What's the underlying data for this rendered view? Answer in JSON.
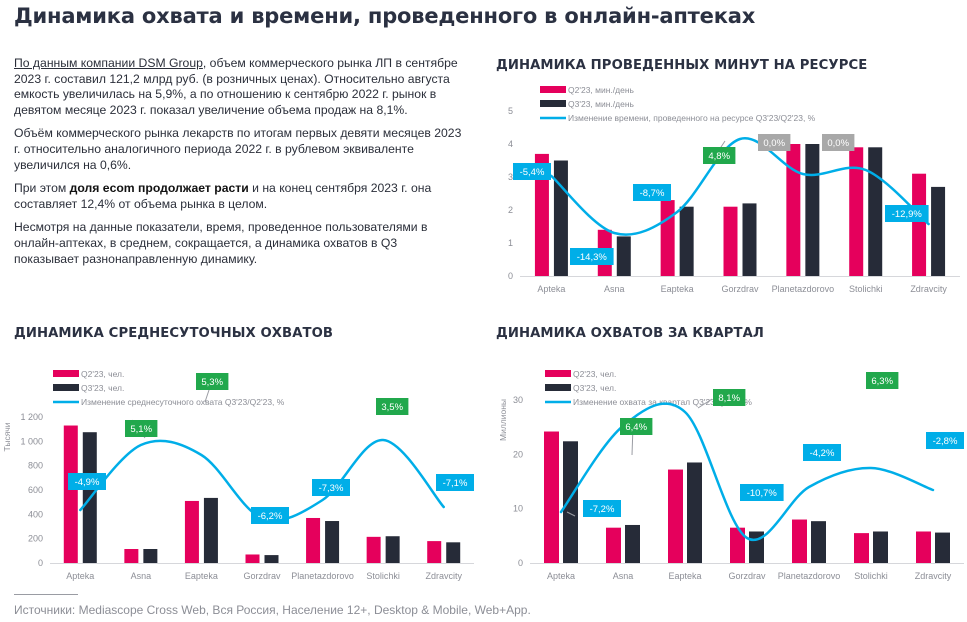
{
  "page": {
    "title": "Динамика охвата и времени, проведенного в онлайн-аптеках",
    "intro": {
      "p1_link": "По данным компании DSM Group",
      "p1_rest": ", объем коммерческого рынка ЛП в сентябре 2023 г. составил 121,2 млрд руб. (в розничных ценах). Относительно августа емкость увеличилась на 5,9%, а по отношению к сентябрю 2022 г. рынок в девятом месяце 2023 г. показал увеличение объема продаж на 8,1%.",
      "p2": "Объём коммерческого рынка лекарств по итогам первых девяти месяцев 2023 г. относительно аналогичного периода 2022 г. в рублевом эквиваленте увеличился на 0,6%.",
      "p3_pre": "При этом ",
      "p3_bold": "доля ecom продолжает расти",
      "p3_post": " и на конец сентября 2023 г. она составляет 12,4% от объема рынка в целом.",
      "p4": "Несмотря на данные показатели, время, проведенное пользователями в онлайн-аптеках, в среднем, сокращается, а динамика охватов в Q3 показывает разнонаправленную динамику."
    },
    "footer": "Источники: Mediascope Cross Web, Вся Россия, Население 12+, Desktop & Mobile, Web+App.",
    "colors": {
      "q2": "#e5005c",
      "q3": "#262b38",
      "line": "#00aee8",
      "label_negative": "#00aee8",
      "label_positive": "#21a84c",
      "label_zero": "#a8a8a8",
      "axis_text": "#8c8e96"
    }
  },
  "chart_data": [
    {
      "id": "minutes",
      "type": "bar",
      "title": "ДИНАМИКА ПРОВЕДЕННЫХ МИНУТ НА РЕСУРСЕ",
      "categories": [
        "Apteka",
        "Asna",
        "Eapteka",
        "Gorzdrav",
        "Planetazdorovo",
        "Stolichki",
        "Zdravcity"
      ],
      "series": [
        {
          "name": "Q2'23, мин./день",
          "values": [
            3.7,
            1.4,
            2.3,
            2.1,
            4.0,
            3.9,
            3.1
          ]
        },
        {
          "name": "Q3'23, мин./день",
          "values": [
            3.5,
            1.2,
            2.1,
            2.2,
            4.0,
            3.9,
            2.7
          ]
        }
      ],
      "line": {
        "name": "Изменение времени, проведенного на ресурсе Q3'23/Q2'23, %",
        "labels": [
          "-5,4%",
          "-14,3%",
          "-8,7%",
          "4,8%",
          "0,0%",
          "0,0%",
          "-12,9%"
        ],
        "values": [
          -5.4,
          -14.3,
          -8.7,
          4.8,
          0.0,
          0.0,
          -12.9
        ]
      },
      "ylabel": "",
      "ylim": [
        0,
        5
      ],
      "yticks": [
        "0",
        "1",
        "2",
        "3",
        "4",
        "5"
      ],
      "legend": "top-left"
    },
    {
      "id": "daily",
      "type": "bar",
      "title": "ДИНАМИКА СРЕДНЕСУТОЧНЫХ ОХВАТОВ",
      "categories": [
        "Apteka",
        "Asna",
        "Eapteka",
        "Gorzdrav",
        "Planetazdorovo",
        "Stolichki",
        "Zdravcity"
      ],
      "series": [
        {
          "name": "Q2'23, чел.",
          "values": [
            1130,
            115,
            510,
            70,
            370,
            215,
            180
          ]
        },
        {
          "name": "Q3'23, чел.",
          "values": [
            1075,
            115,
            535,
            65,
            345,
            220,
            170
          ]
        }
      ],
      "line": {
        "name": "Изменение среднесуточного охвата Q3'23/Q2'23, %",
        "labels": [
          "-4,9%",
          "5,1%",
          "5,3%",
          "-6,2%",
          "-7,3%",
          "3,5%",
          "-7,1%"
        ],
        "values": [
          -4.9,
          5.1,
          5.3,
          -6.2,
          -7.3,
          3.5,
          -7.1
        ]
      },
      "ylabel": "Тысячи",
      "ylim": [
        0,
        1200
      ],
      "yticks": [
        "0",
        "200",
        "400",
        "600",
        "800",
        "1 000",
        "1 200"
      ],
      "legend": "top-left"
    },
    {
      "id": "quarter",
      "type": "bar",
      "title": "ДИНАМИКА ОХВАТОВ ЗА КВАРТАЛ",
      "categories": [
        "Apteka",
        "Asna",
        "Eapteka",
        "Gorzdrav",
        "Planetazdorovo",
        "Stolichki",
        "Zdravcity"
      ],
      "series": [
        {
          "name": "Q2'23, чел.",
          "values": [
            24.2,
            6.5,
            17.2,
            6.5,
            8.0,
            5.5,
            5.8
          ]
        },
        {
          "name": "Q3'23, чел.",
          "values": [
            22.4,
            7.0,
            18.5,
            5.8,
            7.7,
            5.8,
            5.6
          ]
        }
      ],
      "line": {
        "name": "Изменение охвата за квартал Q3'23/Q2'23, %",
        "labels": [
          "-7,2%",
          "6,4%",
          "8,1%",
          "-10,7%",
          "-4,2%",
          "6,3%",
          "-2,8%"
        ],
        "values": [
          -7.2,
          6.4,
          8.1,
          -10.7,
          -4.2,
          6.3,
          -2.8
        ]
      },
      "ylabel": "Миллионы",
      "ylim": [
        0,
        30
      ],
      "yticks": [
        "0",
        "10",
        "20",
        "30"
      ],
      "legend": "top-left"
    }
  ]
}
